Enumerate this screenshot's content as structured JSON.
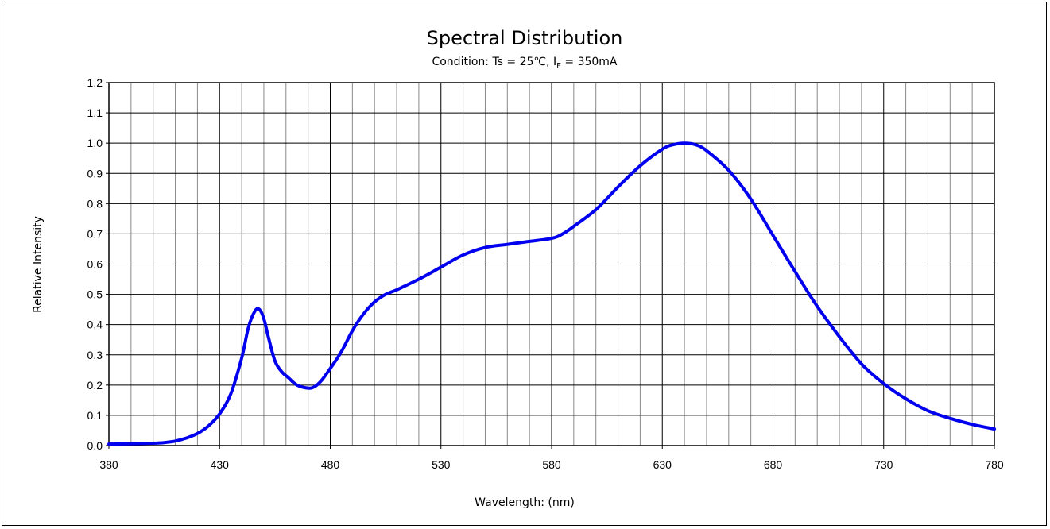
{
  "chart_data": {
    "type": "line",
    "title": "Spectral Distribution",
    "subtitle": {
      "prefix": "Condition: Ts = 25℃, I",
      "subscript": "F",
      "suffix": " = 350mA"
    },
    "xlabel": "Wavelength: (nm)",
    "ylabel": "Relative Intensity",
    "xlim": [
      380,
      780
    ],
    "ylim": [
      0,
      1.2
    ],
    "x_ticks": [
      "380",
      "430",
      "480",
      "530",
      "580",
      "630",
      "680",
      "730",
      "780"
    ],
    "y_ticks": [
      "0.0",
      "0.1",
      "0.2",
      "0.3",
      "0.4",
      "0.5",
      "0.6",
      "0.7",
      "0.8",
      "0.9",
      "1.0",
      "1.1",
      "1.2"
    ],
    "grid": true,
    "legend": "none",
    "series": [
      {
        "color": "#0000ee",
        "x": [
          380,
          390,
          400,
          405,
          410,
          415,
          420,
          425,
          430,
          435,
          440,
          443,
          446,
          448,
          450,
          452,
          455,
          458,
          461,
          465,
          470,
          473,
          476,
          480,
          485,
          490,
          495,
          500,
          505,
          510,
          520,
          530,
          540,
          550,
          560,
          570,
          580,
          585,
          590,
          600,
          610,
          620,
          630,
          635,
          640,
          645,
          650,
          660,
          670,
          680,
          690,
          700,
          710,
          720,
          730,
          740,
          750,
          760,
          770,
          780
        ],
        "y": [
          0.005,
          0.006,
          0.008,
          0.01,
          0.015,
          0.025,
          0.04,
          0.065,
          0.105,
          0.17,
          0.29,
          0.39,
          0.445,
          0.45,
          0.42,
          0.36,
          0.28,
          0.245,
          0.225,
          0.2,
          0.19,
          0.195,
          0.215,
          0.255,
          0.31,
          0.38,
          0.435,
          0.475,
          0.5,
          0.515,
          0.55,
          0.59,
          0.63,
          0.655,
          0.665,
          0.675,
          0.685,
          0.7,
          0.725,
          0.78,
          0.855,
          0.925,
          0.98,
          0.995,
          1.0,
          0.995,
          0.975,
          0.91,
          0.815,
          0.695,
          0.575,
          0.46,
          0.36,
          0.27,
          0.205,
          0.155,
          0.115,
          0.09,
          0.07,
          0.055
        ]
      }
    ]
  }
}
